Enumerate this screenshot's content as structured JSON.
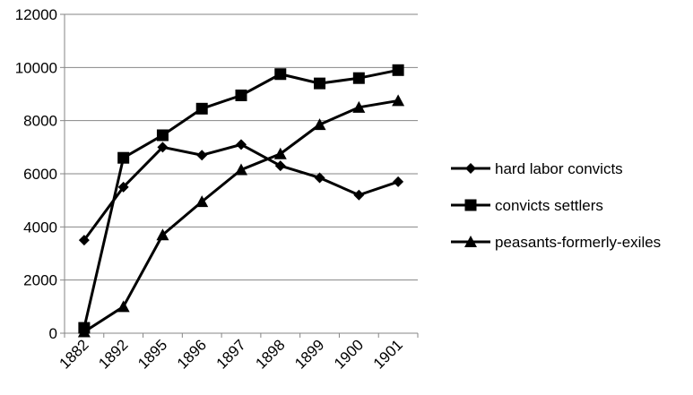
{
  "chart_data": {
    "type": "line",
    "categories": [
      "1882",
      "1892",
      "1895",
      "1896",
      "1897",
      "1898",
      "1899",
      "1900",
      "1901"
    ],
    "ylim": [
      0,
      12000
    ],
    "yticks": [
      0,
      2000,
      4000,
      6000,
      8000,
      10000,
      12000
    ],
    "grid": "horizontal",
    "legend_position": "right",
    "series": [
      {
        "name": "hard labor convicts",
        "marker": "diamond",
        "values": [
          3500,
          5500,
          7000,
          6700,
          7100,
          6300,
          5850,
          5200,
          5700
        ]
      },
      {
        "name": "convicts settlers",
        "marker": "square",
        "values": [
          200,
          6600,
          7450,
          8450,
          8950,
          9750,
          9400,
          9600,
          9900
        ]
      },
      {
        "name": "peasants-formerly-exiles",
        "marker": "triangle",
        "values": [
          50,
          1000,
          3700,
          4950,
          6150,
          6750,
          7850,
          8500,
          8750
        ]
      }
    ],
    "colors": {
      "line": "#000000",
      "grid": "#868686",
      "axis": "#868686"
    }
  }
}
